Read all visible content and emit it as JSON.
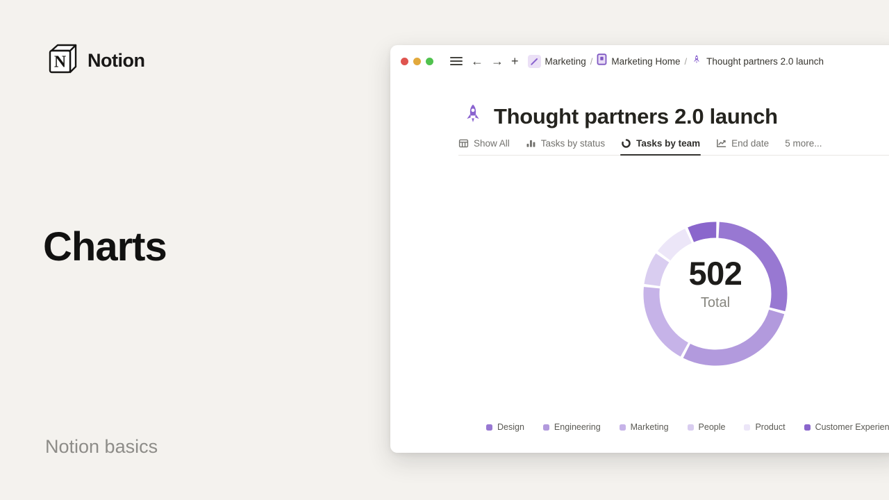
{
  "page": {
    "brand_name": "Notion",
    "title": "Charts",
    "footer": "Notion basics",
    "background_color": "#f4f2ee"
  },
  "window": {
    "traffic_lights": [
      "#df544f",
      "#e2a93c",
      "#50c24e"
    ],
    "controls": {
      "back": "←",
      "forward": "→",
      "new_tab": "+"
    },
    "breadcrumb_separator": "/",
    "breadcrumb": [
      {
        "icon": "pencil-icon",
        "label": "Marketing"
      },
      {
        "icon": "notebook-icon",
        "label": "Marketing Home"
      },
      {
        "icon": "rocket-icon",
        "label": "Thought partners 2.0 launch"
      }
    ],
    "page_title": "Thought partners 2.0 launch",
    "page_icon": "rocket-icon",
    "tabs": [
      {
        "icon": "table-icon",
        "label": "Show All",
        "active": false
      },
      {
        "icon": "bar-chart-icon",
        "label": "Tasks by status",
        "active": false
      },
      {
        "icon": "donut-chart-icon",
        "label": "Tasks by team",
        "active": true
      },
      {
        "icon": "line-chart-icon",
        "label": "End date",
        "active": false
      },
      {
        "icon": null,
        "label": "5 more...",
        "active": false
      }
    ]
  },
  "chart_data": {
    "type": "donut",
    "title": "Tasks by team",
    "center_value": "502",
    "center_label": "Total",
    "total": 502,
    "legend_position": "bottom",
    "rotation": 2,
    "segment_gap_degrees": 2.4,
    "series": [
      {
        "name": "Design",
        "value": 144,
        "color": "#9878d2"
      },
      {
        "name": "Engineering",
        "value": 143,
        "color": "#b29add"
      },
      {
        "name": "Marketing",
        "value": 96,
        "color": "#c6b3e8"
      },
      {
        "name": "People",
        "value": 40,
        "color": "#d9cdf0"
      },
      {
        "name": "Product",
        "value": 43,
        "color": "#ece6f8"
      },
      {
        "name": "Customer Experience",
        "value": 36,
        "color": "#8a66cc"
      }
    ]
  },
  "colors": {
    "accent_purple": "#8a63cf",
    "active_tab": "#33322e",
    "inactive_tab": "#73726e",
    "divider": "#e8e7e4"
  }
}
